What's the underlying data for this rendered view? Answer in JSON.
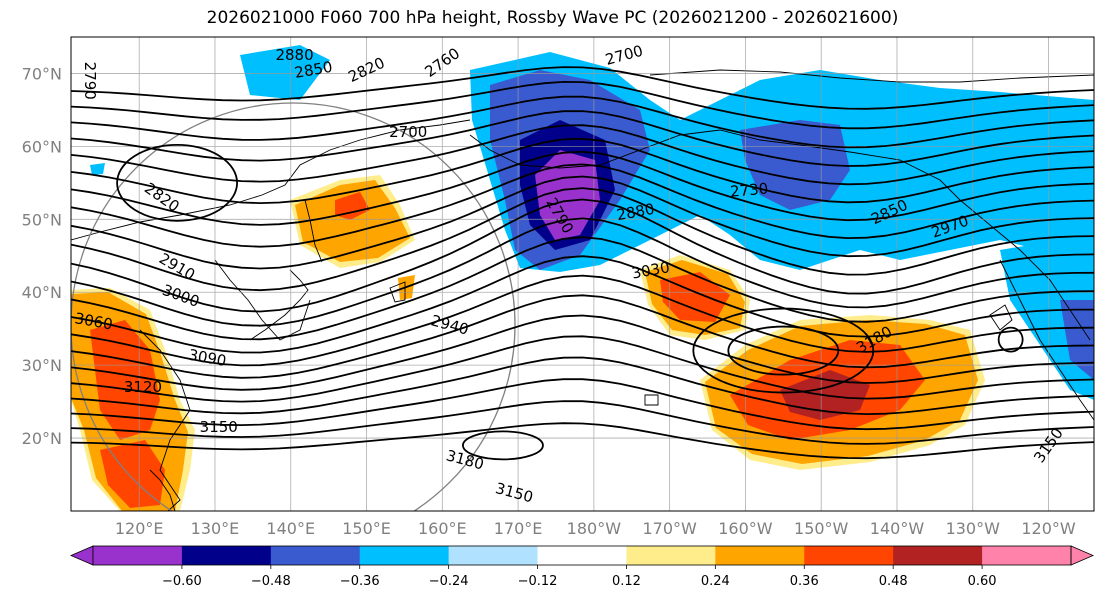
{
  "title": "2026021000 F060 700 hPa height, Rossby Wave PC (2026021200 - 2026021600)",
  "map": {
    "projection": "Plate Carree",
    "lon_range": [
      111,
      246
    ],
    "lat_range": [
      10,
      75
    ],
    "graticule_lons": [
      120,
      130,
      140,
      150,
      160,
      170,
      180,
      190,
      200,
      210,
      220,
      230,
      240
    ],
    "graticule_lats": [
      20,
      30,
      40,
      50,
      60,
      70
    ],
    "lat_labels": [
      {
        "lat": 70,
        "text": "70°N"
      },
      {
        "lat": 60,
        "text": "60°N"
      },
      {
        "lat": 50,
        "text": "50°N"
      },
      {
        "lat": 40,
        "text": "40°N"
      },
      {
        "lat": 30,
        "text": "30°N"
      },
      {
        "lat": 20,
        "text": "20°N"
      }
    ],
    "lon_labels": [
      {
        "lon": 120,
        "text": "120°E"
      },
      {
        "lon": 130,
        "text": "130°E"
      },
      {
        "lon": 140,
        "text": "140°E"
      },
      {
        "lon": 150,
        "text": "150°E"
      },
      {
        "lon": 160,
        "text": "160°E"
      },
      {
        "lon": 170,
        "text": "170°E"
      },
      {
        "lon": 180,
        "text": "180°W"
      },
      {
        "lon": 190,
        "text": "170°W"
      },
      {
        "lon": 200,
        "text": "160°W"
      },
      {
        "lon": 210,
        "text": "150°W"
      },
      {
        "lon": 220,
        "text": "140°W"
      },
      {
        "lon": 230,
        "text": "130°W"
      },
      {
        "lon": 240,
        "text": "120°W"
      }
    ],
    "contour_labels": [
      {
        "text": "2880",
        "lon": 140.5,
        "lat": 72.5,
        "angle": 0
      },
      {
        "text": "2850",
        "lon": 143,
        "lat": 70.5,
        "angle": -10
      },
      {
        "text": "2820",
        "lon": 150,
        "lat": 70.5,
        "angle": -25
      },
      {
        "text": "2760",
        "lon": 160,
        "lat": 71.5,
        "angle": -35
      },
      {
        "text": "2700",
        "lon": 184,
        "lat": 72.5,
        "angle": -15
      },
      {
        "text": "2790",
        "lon": 113.5,
        "lat": 69,
        "angle": 90
      },
      {
        "text": "2700",
        "lon": 155.5,
        "lat": 62,
        "angle": 0
      },
      {
        "text": "2820",
        "lon": 123,
        "lat": 53,
        "angle": 35
      },
      {
        "text": "2910",
        "lon": 125,
        "lat": 43.5,
        "angle": 30
      },
      {
        "text": "3000",
        "lon": 125.5,
        "lat": 39.5,
        "angle": 20
      },
      {
        "text": "3060",
        "lon": 114,
        "lat": 36,
        "angle": 10
      },
      {
        "text": "3090",
        "lon": 129,
        "lat": 31,
        "angle": 10
      },
      {
        "text": "3120",
        "lon": 120.5,
        "lat": 27,
        "angle": 0
      },
      {
        "text": "3150",
        "lon": 130.5,
        "lat": 21.5,
        "angle": 0
      },
      {
        "text": "3180",
        "lon": 163,
        "lat": 17,
        "angle": 15
      },
      {
        "text": "3150",
        "lon": 169.5,
        "lat": 12.5,
        "angle": 15
      },
      {
        "text": "2940",
        "lon": 161,
        "lat": 35.5,
        "angle": 15
      },
      {
        "text": "3030",
        "lon": 187.5,
        "lat": 43,
        "angle": -10
      },
      {
        "text": "2880",
        "lon": 185.5,
        "lat": 51,
        "angle": -10
      },
      {
        "text": "2730",
        "lon": 200.5,
        "lat": 54,
        "angle": -5
      },
      {
        "text": "2790",
        "lon": 175.5,
        "lat": 50.5,
        "angle": 60
      },
      {
        "text": "2850",
        "lon": 219,
        "lat": 51,
        "angle": -25
      },
      {
        "text": "2970",
        "lon": 227,
        "lat": 49,
        "angle": -20
      },
      {
        "text": "3180",
        "lon": 217,
        "lat": 33.5,
        "angle": -30
      },
      {
        "text": "3150",
        "lon": 240,
        "lat": 19,
        "angle": -55
      }
    ]
  },
  "colorbar": {
    "bounds": [
      -0.72,
      -0.6,
      -0.48,
      -0.36,
      -0.24,
      -0.12,
      0.12,
      0.24,
      0.36,
      0.48,
      0.6,
      0.72
    ],
    "colors": [
      "#9932cc",
      "#00008b",
      "#3a5bd0",
      "#00bfff",
      "#b0e2ff",
      "#ffffff",
      "#ffec8b",
      "#ffa500",
      "#ff4500",
      "#b22222",
      "#ff82ab"
    ],
    "extend_colors": {
      "min": "#9932cc",
      "max": "#ff82ab"
    },
    "tick_labels": [
      "−0.60",
      "−0.48",
      "−0.36",
      "−0.24",
      "−0.12",
      "0.12",
      "0.24",
      "0.36",
      "0.48",
      "0.60"
    ]
  }
}
